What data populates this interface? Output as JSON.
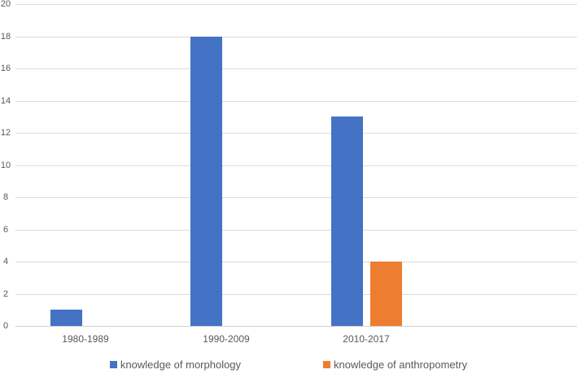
{
  "chart_data": {
    "type": "bar",
    "title": "",
    "xlabel": "",
    "ylabel": "",
    "categories": [
      "1980-1989",
      "1990-2009",
      "2010-2017"
    ],
    "series": [
      {
        "name": "knowledge of morphology",
        "color": "#4472C4",
        "values": [
          1,
          18,
          13
        ]
      },
      {
        "name": "knowledge of anthropometry",
        "color": "#ED7D31",
        "values": [
          0,
          0,
          4
        ]
      }
    ],
    "ylim": [
      0,
      20
    ],
    "yticks": [
      0,
      2,
      4,
      6,
      8,
      10,
      12,
      14,
      16,
      18,
      20
    ],
    "grid": true,
    "legend_position": "bottom"
  },
  "colors": {
    "series_blue": "#4472C4",
    "series_orange": "#ED7D31",
    "gridline": "#DBDBDB",
    "axis_line": "#D0D0D0",
    "tick_text": "#595959",
    "background": "#FFFFFF"
  }
}
